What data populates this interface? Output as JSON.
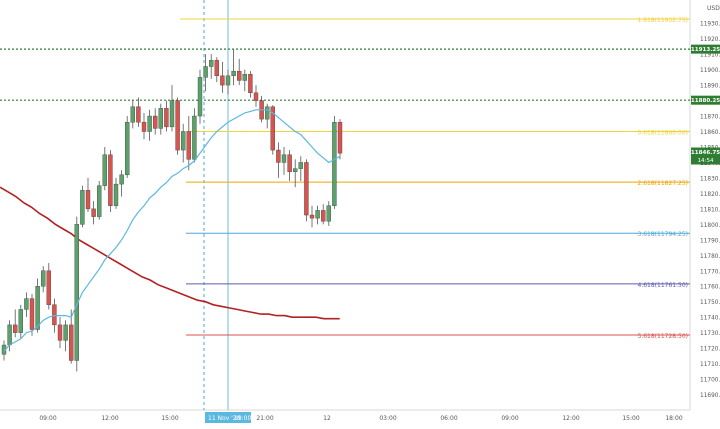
{
  "currency": "USD",
  "colors": {
    "up": "#5aa26a",
    "down": "#d9534f",
    "ema": "#5bb8e0",
    "ma": "#b22222",
    "dotted": "#2e7d32"
  },
  "chart_data": {
    "type": "candlestick",
    "y_range": [
      11680,
      11945
    ],
    "y_ticks": [
      11690,
      11700,
      11710,
      11720,
      11730,
      11740,
      11750,
      11760,
      11770,
      11780,
      11790,
      11800,
      11810,
      11820,
      11830,
      11840,
      11850,
      11860,
      11870,
      11880,
      11890,
      11900,
      11910,
      11920,
      11930
    ],
    "x_ticks": [
      "09:00",
      "12:00",
      "15:00",
      "21:00",
      "12",
      "03:00",
      "06:00",
      "09:00",
      "12:00",
      "15:00",
      "18:00"
    ],
    "x_highlight": [
      "11 Nov '20",
      "19:00"
    ],
    "price_labels": [
      {
        "value": 11913.25,
        "label": "11913.25",
        "color": "#2e7d32"
      },
      {
        "value": 11880.25,
        "label": "11880.25",
        "color": "#2e7d32"
      },
      {
        "value": 11846.75,
        "label": "11846.75",
        "color": "#2e7d32",
        "sub": "14:54"
      }
    ],
    "horizontal_levels": [
      {
        "value": 11913.25,
        "style": "dotted",
        "color": "#2e7d32"
      },
      {
        "value": 11880.25,
        "style": "dotted",
        "color": "#2e7d32"
      }
    ],
    "fib_levels": [
      {
        "label": "1.618(11932.75)",
        "value": 11932.75,
        "color": "#f2d33a"
      },
      {
        "label": "0.618(11860.00)",
        "value": 11860.0,
        "color": "#f2d33a"
      },
      {
        "label": "2.618(11827.25)",
        "value": 11827.25,
        "color": "#f0a500"
      },
      {
        "label": "3.618(11794.25)",
        "value": 11794.25,
        "color": "#4aa8d8"
      },
      {
        "label": "4.618(11761.50)",
        "value": 11761.5,
        "color": "#5e5ab0"
      },
      {
        "label": "5.618(11728.50)",
        "value": 11728.5,
        "color": "#d9534f"
      }
    ],
    "candles": [
      [
        11716,
        11725,
        11712,
        11722
      ],
      [
        11722,
        11738,
        11718,
        11735
      ],
      [
        11735,
        11745,
        11727,
        11730
      ],
      [
        11730,
        11748,
        11726,
        11745
      ],
      [
        11745,
        11756,
        11740,
        11752
      ],
      [
        11752,
        11755,
        11728,
        11732
      ],
      [
        11732,
        11765,
        11730,
        11760
      ],
      [
        11760,
        11773,
        11756,
        11770
      ],
      [
        11770,
        11775,
        11745,
        11748
      ],
      [
        11748,
        11752,
        11730,
        11735
      ],
      [
        11735,
        11740,
        11720,
        11725
      ],
      [
        11725,
        11738,
        11718,
        11735
      ],
      [
        11735,
        11745,
        11710,
        11712
      ],
      [
        11712,
        11805,
        11705,
        11800
      ],
      [
        11800,
        11825,
        11798,
        11822
      ],
      [
        11822,
        11830,
        11808,
        11810
      ],
      [
        11810,
        11815,
        11800,
        11805
      ],
      [
        11805,
        11828,
        11803,
        11825
      ],
      [
        11825,
        11850,
        11822,
        11845
      ],
      [
        11845,
        11848,
        11808,
        11812
      ],
      [
        11812,
        11830,
        11810,
        11826
      ],
      [
        11826,
        11835,
        11818,
        11832
      ],
      [
        11832,
        11870,
        11830,
        11866
      ],
      [
        11866,
        11880,
        11862,
        11876
      ],
      [
        11876,
        11882,
        11863,
        11866
      ],
      [
        11866,
        11872,
        11855,
        11860
      ],
      [
        11860,
        11874,
        11854,
        11870
      ],
      [
        11870,
        11875,
        11858,
        11862
      ],
      [
        11862,
        11878,
        11858,
        11875
      ],
      [
        11875,
        11880,
        11860,
        11863
      ],
      [
        11863,
        11890,
        11860,
        11880
      ],
      [
        11880,
        11882,
        11845,
        11848
      ],
      [
        11848,
        11865,
        11840,
        11860
      ],
      [
        11860,
        11870,
        11835,
        11842
      ],
      [
        11842,
        11875,
        11840,
        11870
      ],
      [
        11870,
        11900,
        11865,
        11895
      ],
      [
        11895,
        11910,
        11886,
        11902
      ],
      [
        11902,
        11910,
        11894,
        11906
      ],
      [
        11906,
        11908,
        11892,
        11896
      ],
      [
        11896,
        11905,
        11885,
        11890
      ],
      [
        11890,
        11900,
        11884,
        11896
      ],
      [
        11896,
        11913,
        11890,
        11899
      ],
      [
        11899,
        11907,
        11890,
        11893
      ],
      [
        11893,
        11900,
        11886,
        11897
      ],
      [
        11897,
        11899,
        11882,
        11885
      ],
      [
        11885,
        11890,
        11876,
        11880
      ],
      [
        11880,
        11883,
        11866,
        11868
      ],
      [
        11868,
        11878,
        11862,
        11876
      ],
      [
        11876,
        11877,
        11845,
        11848
      ],
      [
        11848,
        11853,
        11830,
        11840
      ],
      [
        11840,
        11850,
        11832,
        11845
      ],
      [
        11845,
        11848,
        11828,
        11834
      ],
      [
        11834,
        11842,
        11824,
        11836
      ],
      [
        11836,
        11844,
        11828,
        11840
      ],
      [
        11840,
        11842,
        11802,
        11806
      ],
      [
        11806,
        11812,
        11798,
        11804
      ],
      [
        11804,
        11812,
        11800,
        11809
      ],
      [
        11809,
        11813,
        11800,
        11802
      ],
      [
        11802,
        11815,
        11799,
        11812
      ],
      [
        11812,
        11870,
        11810,
        11866
      ],
      [
        11866,
        11868,
        11842,
        11846
      ]
    ],
    "ema": [
      11718,
      11722,
      11724,
      11726,
      11730,
      11731,
      11734,
      11738,
      11740,
      11741,
      11741,
      11741,
      11740,
      11748,
      11756,
      11761,
      11766,
      11771,
      11777,
      11781,
      11785,
      11790,
      11796,
      11803,
      11808,
      11812,
      11817,
      11820,
      11824,
      11827,
      11831,
      11833,
      11836,
      11838,
      11841,
      11846,
      11851,
      11856,
      11860,
      11863,
      11866,
      11868,
      11870,
      11872,
      11873,
      11874,
      11874,
      11874,
      11872,
      11869,
      11866,
      11863,
      11860,
      11858,
      11854,
      11850,
      11846,
      11843,
      11840,
      11842,
      11844
    ],
    "ma": [
      11824,
      11821,
      11818,
      11814,
      11811,
      11807,
      11804,
      11800,
      11797,
      11794,
      11790,
      11787,
      11784,
      11781,
      11778,
      11775,
      11772,
      11769,
      11766,
      11764,
      11761,
      11759,
      11757,
      11755,
      11753,
      11751,
      11750,
      11748,
      11747,
      11746,
      11745,
      11744,
      11743,
      11742,
      11742,
      11741,
      11741,
      11740,
      11740,
      11740,
      11740,
      11739,
      11739,
      11739
    ]
  }
}
